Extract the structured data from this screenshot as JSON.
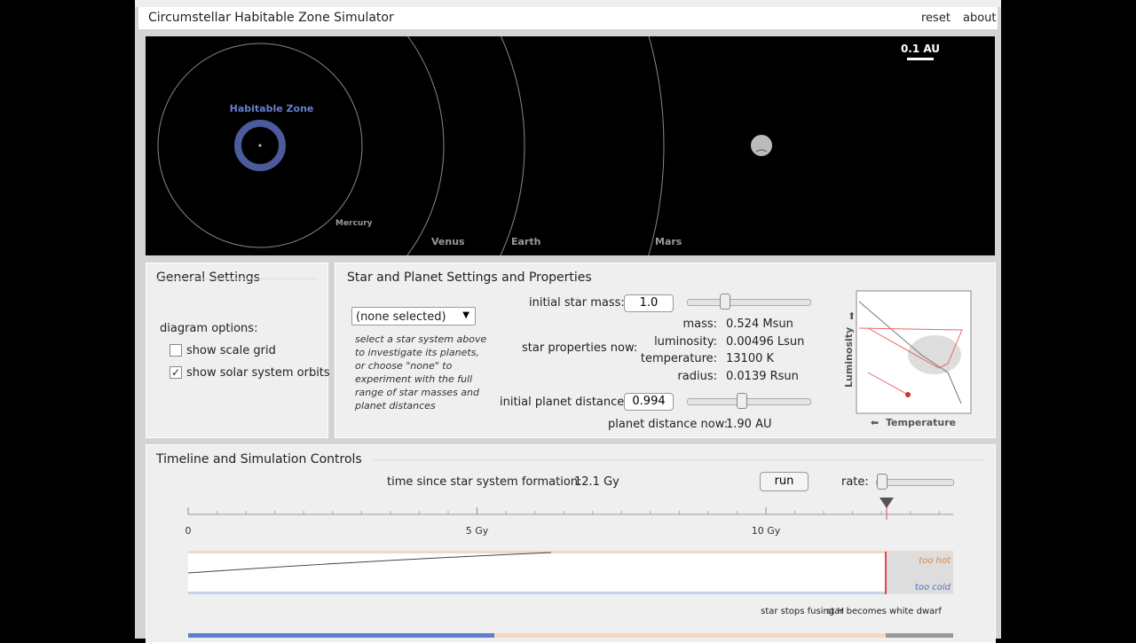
{
  "header": {
    "title": "Circumstellar Habitable Zone Simulator",
    "links": [
      "reset",
      "about"
    ]
  },
  "orbit_view": {
    "scale_label": "0.1 AU",
    "zone_label": "Habitable Zone",
    "planets": [
      "Mercury",
      "Venus",
      "Earth",
      "Mars"
    ]
  },
  "general_settings": {
    "title": "General Settings",
    "options_label": "diagram options:",
    "options": [
      {
        "label": "show scale grid",
        "checked": false
      },
      {
        "label": "show solar system orbits",
        "checked": true
      }
    ]
  },
  "star_planet": {
    "title": "Star and Planet Settings and Properties",
    "system_select": "(none selected)",
    "help": "select a star system above to investigate its planets, or choose \"none\" to experiment with the full range of star masses and planet distances",
    "star_mass_label": "initial star mass:",
    "star_mass": "1.0",
    "properties_label": "star properties now:",
    "properties": [
      {
        "label": "mass:",
        "value": "0.524 Msun"
      },
      {
        "label": "luminosity:",
        "value": "0.00496 Lsun"
      },
      {
        "label": "temperature:",
        "value": "13100 K"
      },
      {
        "label": "radius:",
        "value": "0.0139 Rsun"
      }
    ],
    "planet_distance_label": "initial planet distance:",
    "planet_distance": "0.994",
    "distance_now_label": "planet distance now:",
    "distance_now": "1.90 AU",
    "hr_y_label": "Luminosity",
    "hr_x_label": "Temperature"
  },
  "timeline": {
    "title": "Timeline and Simulation Controls",
    "time_label": "time since star system formation:",
    "time": "12.1 Gy",
    "run": "run",
    "rate_label": "rate:",
    "ticks": [
      0,
      {
        "value": 5,
        "label": "5 Gy"
      },
      {
        "value": 10,
        "label": "10 Gy"
      }
    ],
    "too_hot": "too hot",
    "too_cold": "too cold",
    "events": [
      "star stops fusing H",
      "star becomes white dwarf"
    ]
  }
}
